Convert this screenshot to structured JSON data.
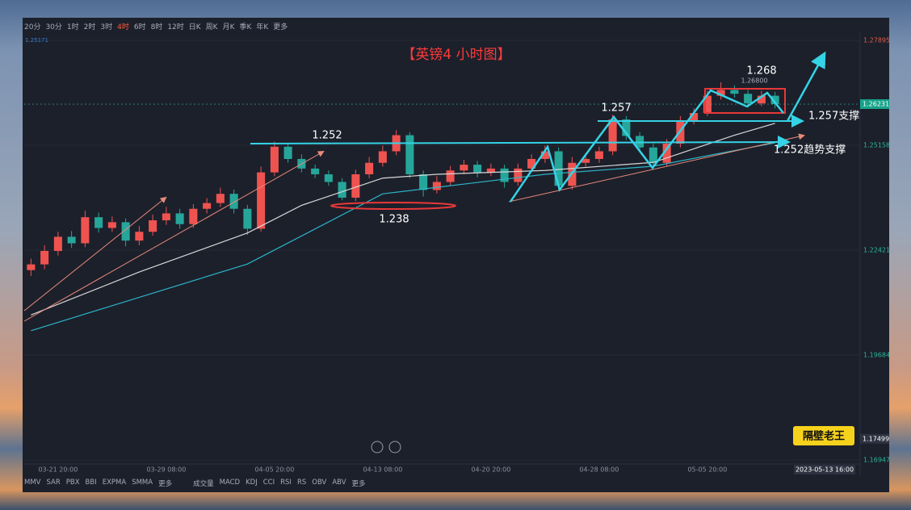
{
  "toolbar": {
    "periods": [
      "20分",
      "30分",
      "1时",
      "2时",
      "3时",
      "4时",
      "6时",
      "8时",
      "12时",
      "日K",
      "周K",
      "月K",
      "季K",
      "年K",
      "更多"
    ],
    "active_index": 5
  },
  "indicators_left": [
    "MMV",
    "SAR",
    "PBX",
    "BBI",
    "EXPMA",
    "SMMA",
    "更多"
  ],
  "indicators_right": [
    "成交量",
    "MACD",
    "KDJ",
    "CCI",
    "RSI",
    "RS",
    "OBV",
    "ABV",
    "更多"
  ],
  "badge": "隔壁老王",
  "chart_data": {
    "type": "candlestick",
    "title": "【英镑4 小时图】",
    "categories": [
      null,
      null,
      "03-21 20:00",
      null,
      null,
      null,
      null,
      null,
      null,
      null,
      "03-29 08:00",
      null,
      null,
      null,
      null,
      null,
      null,
      null,
      "04-05 20:00",
      null,
      null,
      null,
      null,
      null,
      null,
      null,
      "04-13 08:00",
      null,
      null,
      null,
      null,
      null,
      null,
      null,
      "04-20 20:00",
      null,
      null,
      null,
      null,
      null,
      null,
      null,
      "04-28 08:00",
      null,
      null,
      null,
      null,
      null,
      null,
      null,
      "05-05 20:00",
      null,
      null,
      null,
      null,
      null
    ],
    "open": [
      1.219,
      1.2205,
      1.224,
      1.2277,
      1.226,
      1.2328,
      1.23,
      1.2315,
      1.2267,
      1.229,
      1.232,
      1.2338,
      1.231,
      1.235,
      1.2365,
      1.2389,
      1.235,
      1.2298,
      1.2445,
      1.2512,
      1.248,
      1.2455,
      1.244,
      1.242,
      1.2379,
      1.244,
      1.247,
      1.25,
      1.2542,
      1.244,
      1.2399,
      1.242,
      1.245,
      1.2465,
      1.2445,
      1.2455,
      1.242,
      1.2455,
      1.248,
      1.25,
      1.241,
      1.247,
      1.248,
      1.25,
      1.2583,
      1.254,
      1.251,
      1.247,
      1.252,
      1.258,
      1.26,
      1.2645,
      1.266,
      1.265,
      1.2625,
      1.2645
    ],
    "high": [
      1.222,
      1.2255,
      1.229,
      1.2292,
      1.2345,
      1.234,
      1.233,
      1.2325,
      1.2305,
      1.2335,
      1.2355,
      1.235,
      1.2362,
      1.2378,
      1.2405,
      1.24,
      1.236,
      1.246,
      1.2525,
      1.252,
      1.2492,
      1.2465,
      1.245,
      1.243,
      1.2452,
      1.2485,
      1.2515,
      1.2555,
      1.255,
      1.245,
      1.2435,
      1.2462,
      1.2478,
      1.2475,
      1.2468,
      1.2465,
      1.2468,
      1.2492,
      1.2515,
      1.251,
      1.2485,
      1.2495,
      1.2512,
      1.2595,
      1.2592,
      1.255,
      1.252,
      1.2532,
      1.2592,
      1.2612,
      1.2658,
      1.268,
      1.2672,
      1.266,
      1.2658,
      1.2655
    ],
    "low": [
      1.2175,
      1.2192,
      1.2228,
      1.2248,
      1.225,
      1.2288,
      1.229,
      1.2252,
      1.2255,
      1.228,
      1.2308,
      1.2298,
      1.23,
      1.2338,
      1.2355,
      1.2338,
      1.2282,
      1.229,
      1.2435,
      1.247,
      1.2445,
      1.243,
      1.241,
      1.2372,
      1.237,
      1.243,
      1.246,
      1.249,
      1.243,
      1.2382,
      1.239,
      1.241,
      1.244,
      1.2432,
      1.2435,
      1.2405,
      1.241,
      1.2445,
      1.247,
      1.2398,
      1.24,
      1.246,
      1.247,
      1.249,
      1.253,
      1.25,
      1.246,
      1.2462,
      1.251,
      1.257,
      1.2592,
      1.2635,
      1.264,
      1.2615,
      1.2618,
      1.2612
    ],
    "close": [
      1.2205,
      1.224,
      1.2277,
      1.226,
      1.2328,
      1.23,
      1.2315,
      1.2267,
      1.229,
      1.232,
      1.2338,
      1.231,
      1.235,
      1.2365,
      1.2389,
      1.235,
      1.2298,
      1.2445,
      1.2512,
      1.248,
      1.2455,
      1.244,
      1.242,
      1.2379,
      1.244,
      1.247,
      1.25,
      1.2542,
      1.244,
      1.2399,
      1.242,
      1.245,
      1.2465,
      1.2445,
      1.2455,
      1.242,
      1.2455,
      1.248,
      1.25,
      1.241,
      1.247,
      1.248,
      1.25,
      1.2583,
      1.254,
      1.251,
      1.247,
      1.252,
      1.258,
      1.26,
      1.2645,
      1.266,
      1.265,
      1.2625,
      1.2645,
      1.2623
    ],
    "up_color": "#ef5350",
    "down_color": "#26a69a",
    "ma_lines": [
      {
        "color": "#d8d8d8",
        "x": [
          0,
          8,
          16,
          20,
          26,
          30,
          38,
          46,
          52,
          55
        ],
        "values": [
          1.2073,
          1.2185,
          1.2287,
          1.2359,
          1.243,
          1.244,
          1.245,
          1.2471,
          1.2542,
          1.2573
        ]
      },
      {
        "color": "#2bb5c8",
        "x": [
          0,
          16,
          26,
          38,
          46,
          52,
          55
        ],
        "values": [
          1.2032,
          1.2206,
          1.2389,
          1.244,
          1.2461,
          1.2502,
          1.2522
        ]
      }
    ],
    "ylim": [
      1.16526,
      1.28484
    ],
    "yticks": [
      1.27895,
      1.25158,
      1.22421,
      1.19684,
      1.16947
    ],
    "last_price": 1.26231,
    "crosshair_price": 1.17499,
    "crosshair_time": "2023-05-13 16:00",
    "corner_price": 1.25171,
    "annotations": [
      "1.252",
      "1.238",
      "1.257",
      "1.268",
      "1.26800",
      "1.257支撑",
      "1.252趋势支撑"
    ]
  }
}
